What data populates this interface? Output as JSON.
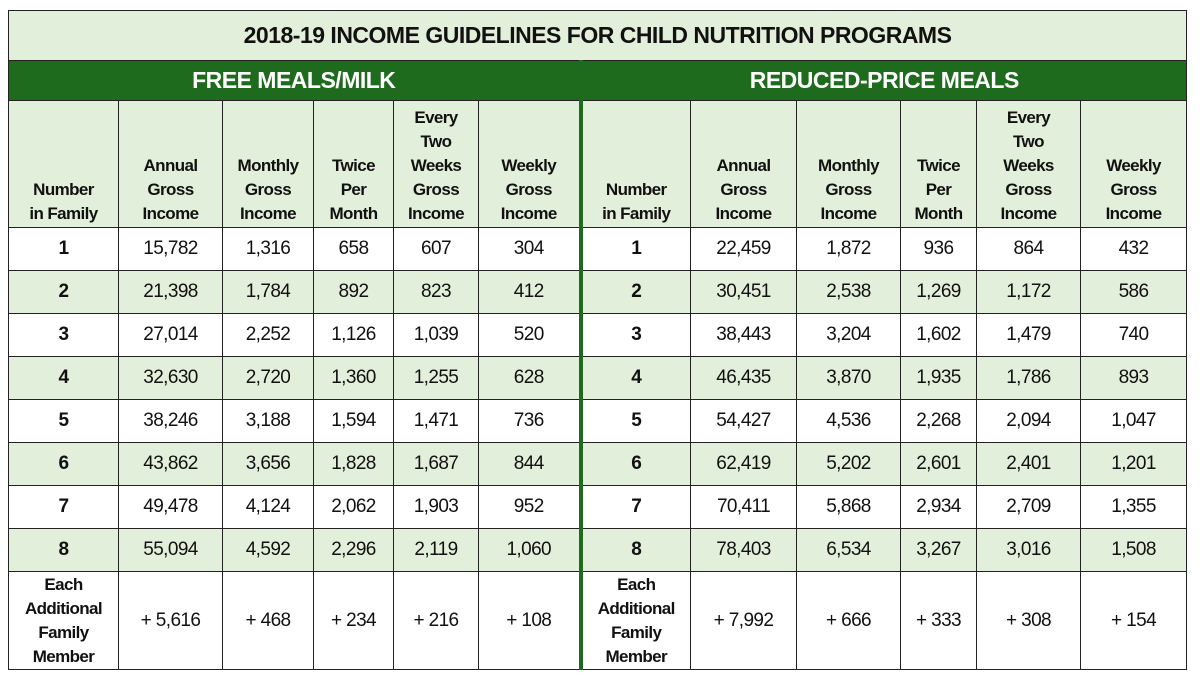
{
  "title": "2018-19 INCOME GUIDELINES FOR CHILD NUTRITION PROGRAMS",
  "sections": [
    {
      "title": "FREE MEALS/MILK",
      "columns": [
        [
          "Number",
          "in Family"
        ],
        [
          "Annual",
          "Gross",
          "Income"
        ],
        [
          "Monthly",
          "Gross",
          "Income"
        ],
        [
          "Twice",
          "Per",
          "Month"
        ],
        [
          "Every",
          "Two",
          "Weeks",
          "Gross",
          "Income"
        ],
        [
          "Weekly",
          "Gross",
          "Income"
        ]
      ],
      "rows": [
        [
          "1",
          "15,782",
          "1,316",
          "658",
          "607",
          "304"
        ],
        [
          "2",
          "21,398",
          "1,784",
          "892",
          "823",
          "412"
        ],
        [
          "3",
          "27,014",
          "2,252",
          "1,126",
          "1,039",
          "520"
        ],
        [
          "4",
          "32,630",
          "2,720",
          "1,360",
          "1,255",
          "628"
        ],
        [
          "5",
          "38,246",
          "3,188",
          "1,594",
          "1,471",
          "736"
        ],
        [
          "6",
          "43,862",
          "3,656",
          "1,828",
          "1,687",
          "844"
        ],
        [
          "7",
          "49,478",
          "4,124",
          "2,062",
          "1,903",
          "952"
        ],
        [
          "8",
          "55,094",
          "4,592",
          "2,296",
          "2,119",
          "1,060"
        ],
        [
          [
            "Each",
            "Additional",
            "Family",
            "Member"
          ],
          "+ 5,616",
          "+ 468",
          "+ 234",
          "+ 216",
          "+ 108"
        ]
      ]
    },
    {
      "title": "REDUCED-PRICE MEALS",
      "columns": [
        [
          "Number",
          "in Family"
        ],
        [
          "Annual",
          "Gross",
          "Income"
        ],
        [
          "Monthly",
          "Gross",
          "Income"
        ],
        [
          "Twice",
          "Per",
          "Month"
        ],
        [
          "Every",
          "Two",
          "Weeks",
          "Gross",
          "Income"
        ],
        [
          "Weekly",
          "Gross",
          "Income"
        ]
      ],
      "rows": [
        [
          "1",
          "22,459",
          "1,872",
          "936",
          "864",
          "432"
        ],
        [
          "2",
          "30,451",
          "2,538",
          "1,269",
          "1,172",
          "586"
        ],
        [
          "3",
          "38,443",
          "3,204",
          "1,602",
          "1,479",
          "740"
        ],
        [
          "4",
          "46,435",
          "3,870",
          "1,935",
          "1,786",
          "893"
        ],
        [
          "5",
          "54,427",
          "4,536",
          "2,268",
          "2,094",
          "1,047"
        ],
        [
          "6",
          "62,419",
          "5,202",
          "2,601",
          "2,401",
          "1,201"
        ],
        [
          "7",
          "70,411",
          "5,868",
          "2,934",
          "2,709",
          "1,355"
        ],
        [
          "8",
          "78,403",
          "6,534",
          "3,267",
          "3,016",
          "1,508"
        ],
        [
          [
            "Each",
            "Additional",
            "Family",
            "Member"
          ],
          "+ 7,992",
          "+ 666",
          "+ 333",
          "+ 308",
          "+ 154"
        ]
      ]
    }
  ]
}
